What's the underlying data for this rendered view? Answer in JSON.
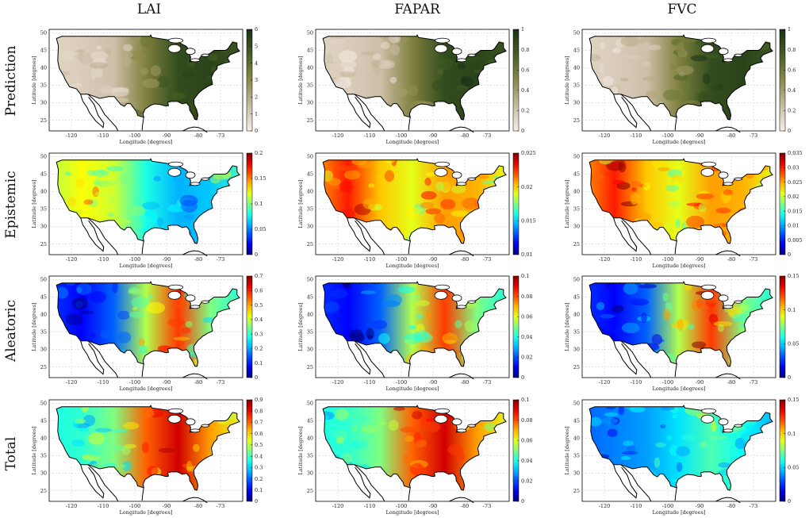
{
  "figure": {
    "columns": [
      "LAI",
      "FAPAR",
      "FVC"
    ],
    "rows": [
      "Prediction",
      "Epistemic",
      "Aleatoric",
      "Total"
    ],
    "xlabel": "Longitude [degrees]",
    "ylabel": "Latitude [degrees]",
    "colors": {
      "prediction_low": "#f6eee8",
      "prediction_mid": "#8c8a45",
      "prediction_high": "#173014",
      "jet_low": "#00008f",
      "jet_high": "#800000"
    }
  },
  "chart_data": [
    {
      "type": "heatmap",
      "row": "Prediction",
      "column": "LAI",
      "colormap": "brown-green",
      "clim": [
        0,
        6
      ],
      "colorbar_ticks": [
        "0",
        "1",
        "2",
        "3",
        "4",
        "5",
        "6"
      ],
      "xticks": [
        "-120",
        "-110",
        "-100",
        "-90",
        "-80",
        "-73"
      ],
      "yticks": [
        "25",
        "30",
        "35",
        "40",
        "45",
        "50"
      ],
      "xlabel": "Longitude [degrees]",
      "ylabel": "Latitude [degrees]",
      "grid": true
    },
    {
      "type": "heatmap",
      "row": "Prediction",
      "column": "FAPAR",
      "colormap": "brown-green",
      "clim": [
        0,
        1
      ],
      "colorbar_ticks": [
        "0",
        "0.2",
        "0.4",
        "0.6",
        "0.8",
        "1"
      ],
      "xticks": [
        "-120",
        "-110",
        "-100",
        "-90",
        "-80",
        "-73"
      ],
      "yticks": [
        "25",
        "30",
        "35",
        "40",
        "45",
        "50"
      ],
      "xlabel": "Longitude [degrees]",
      "ylabel": "Latitude [degrees]",
      "grid": true
    },
    {
      "type": "heatmap",
      "row": "Prediction",
      "column": "FVC",
      "colormap": "brown-green",
      "clim": [
        0,
        1
      ],
      "colorbar_ticks": [
        "0",
        "0.2",
        "0.4",
        "0.6",
        "0.8",
        "1"
      ],
      "xticks": [
        "-120",
        "-110",
        "-100",
        "-90",
        "-80",
        "-73"
      ],
      "yticks": [
        "25",
        "30",
        "35",
        "40",
        "45",
        "50"
      ],
      "xlabel": "Longitude [degrees]",
      "ylabel": "Latitude [degrees]",
      "grid": true
    },
    {
      "type": "heatmap",
      "row": "Epistemic",
      "column": "LAI",
      "colormap": "jet",
      "clim": [
        0,
        0.2
      ],
      "colorbar_ticks": [
        "0",
        "0.05",
        "0.1",
        "0.15",
        "0.2"
      ],
      "xticks": [
        "-120",
        "-110",
        "-100",
        "-90",
        "-80",
        "-73"
      ],
      "yticks": [
        "25",
        "30",
        "35",
        "40",
        "45",
        "50"
      ],
      "xlabel": "Longitude [degrees]",
      "ylabel": "Latitude [degrees]",
      "grid": true
    },
    {
      "type": "heatmap",
      "row": "Epistemic",
      "column": "FAPAR",
      "colormap": "jet",
      "clim": [
        0.01,
        0.025
      ],
      "colorbar_ticks": [
        "0.01",
        "0.015",
        "0.02",
        "0.025"
      ],
      "xticks": [
        "-120",
        "-110",
        "-100",
        "-90",
        "-80",
        "-73"
      ],
      "yticks": [
        "25",
        "30",
        "35",
        "40",
        "45",
        "50"
      ],
      "xlabel": "Longitude [degrees]",
      "ylabel": "Latitude [degrees]",
      "grid": true
    },
    {
      "type": "heatmap",
      "row": "Epistemic",
      "column": "FVC",
      "colormap": "jet",
      "clim": [
        0,
        0.035
      ],
      "colorbar_ticks": [
        "0",
        "0.005",
        "0.01",
        "0.015",
        "0.02",
        "0.025",
        "0.03",
        "0.035"
      ],
      "xticks": [
        "-120",
        "-110",
        "-100",
        "-90",
        "-80",
        "-73"
      ],
      "yticks": [
        "25",
        "30",
        "35",
        "40",
        "45",
        "50"
      ],
      "xlabel": "Longitude [degrees]",
      "ylabel": "Latitude [degrees]",
      "grid": true
    },
    {
      "type": "heatmap",
      "row": "Aleatoric",
      "column": "LAI",
      "colormap": "jet",
      "clim": [
        0,
        0.7
      ],
      "colorbar_ticks": [
        "0",
        "0.1",
        "0.2",
        "0.3",
        "0.4",
        "0.5",
        "0.6",
        "0.7"
      ],
      "xticks": [
        "-120",
        "-110",
        "-100",
        "-90",
        "-80",
        "-73"
      ],
      "yticks": [
        "25",
        "30",
        "35",
        "40",
        "45",
        "50"
      ],
      "xlabel": "Longitude [degrees]",
      "ylabel": "Latitude [degrees]",
      "grid": true
    },
    {
      "type": "heatmap",
      "row": "Aleatoric",
      "column": "FAPAR",
      "colormap": "jet",
      "clim": [
        0,
        0.1
      ],
      "colorbar_ticks": [
        "0",
        "0.02",
        "0.04",
        "0.06",
        "0.08",
        "0.1"
      ],
      "xticks": [
        "-120",
        "-110",
        "-100",
        "-90",
        "-80",
        "-73"
      ],
      "yticks": [
        "25",
        "30",
        "35",
        "40",
        "45",
        "50"
      ],
      "xlabel": "Longitude [degrees]",
      "ylabel": "Latitude [degrees]",
      "grid": true
    },
    {
      "type": "heatmap",
      "row": "Aleatoric",
      "column": "FVC",
      "colormap": "jet",
      "clim": [
        0,
        0.15
      ],
      "colorbar_ticks": [
        "0",
        "0.05",
        "0.1",
        "0.15"
      ],
      "xticks": [
        "-120",
        "-110",
        "-100",
        "-90",
        "-80",
        "-73"
      ],
      "yticks": [
        "25",
        "30",
        "35",
        "40",
        "45",
        "50"
      ],
      "xlabel": "Longitude [degrees]",
      "ylabel": "Latitude [degrees]",
      "grid": true
    },
    {
      "type": "heatmap",
      "row": "Total",
      "column": "LAI",
      "colormap": "jet",
      "clim": [
        0,
        0.9
      ],
      "colorbar_ticks": [
        "0",
        "0.1",
        "0.2",
        "0.3",
        "0.4",
        "0.5",
        "0.6",
        "0.7",
        "0.8",
        "0.9"
      ],
      "xticks": [
        "-120",
        "-110",
        "-100",
        "-90",
        "-80",
        "-73"
      ],
      "yticks": [
        "25",
        "30",
        "35",
        "40",
        "45",
        "50"
      ],
      "xlabel": "Longitude [degrees]",
      "ylabel": "Latitude [degrees]",
      "grid": true
    },
    {
      "type": "heatmap",
      "row": "Total",
      "column": "FAPAR",
      "colormap": "jet",
      "clim": [
        0,
        0.1
      ],
      "colorbar_ticks": [
        "0",
        "0.02",
        "0.04",
        "0.06",
        "0.08",
        "0.1"
      ],
      "xticks": [
        "-120",
        "-110",
        "-100",
        "-90",
        "-80",
        "-73"
      ],
      "yticks": [
        "25",
        "30",
        "35",
        "40",
        "45",
        "50"
      ],
      "xlabel": "Longitude [degrees]",
      "ylabel": "Latitude [degrees]",
      "grid": true
    },
    {
      "type": "heatmap",
      "row": "Total",
      "column": "FVC",
      "colormap": "jet",
      "clim": [
        0,
        0.15
      ],
      "colorbar_ticks": [
        "0",
        "0.05",
        "0.1",
        "0.15"
      ],
      "xticks": [
        "-120",
        "-110",
        "-100",
        "-90",
        "-80",
        "-73"
      ],
      "yticks": [
        "25",
        "30",
        "35",
        "40",
        "45",
        "50"
      ],
      "xlabel": "Longitude [degrees]",
      "ylabel": "Latitude [degrees]",
      "grid": true
    }
  ]
}
